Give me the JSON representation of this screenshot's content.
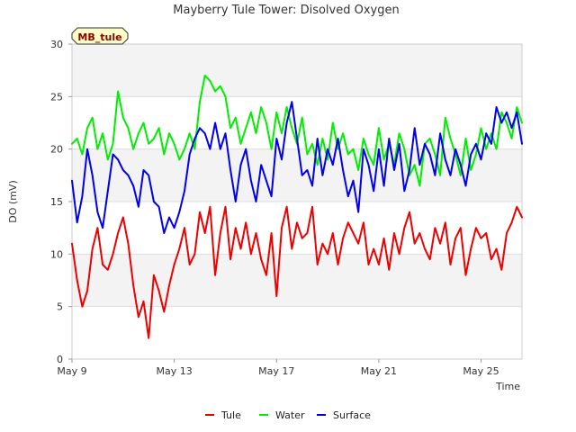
{
  "chart_data": {
    "type": "line",
    "title": "Mayberry Tule Tower: Disolved Oxygen",
    "xlabel": "Time",
    "ylabel": "DO (mV)",
    "site_badge": "MB_tule",
    "ylim": [
      0,
      30
    ],
    "xlim": [
      "May 9",
      "May 26.6"
    ],
    "x_ticks": [
      "May 9",
      "May 13",
      "May 17",
      "May 21",
      "May 25"
    ],
    "y_ticks": [
      0,
      5,
      10,
      15,
      20,
      25,
      30
    ],
    "grid": true,
    "legend": "bottom",
    "x_days": [
      9.0,
      9.2,
      9.4,
      9.6,
      9.8,
      10.0,
      10.2,
      10.4,
      10.6,
      10.8,
      11.0,
      11.2,
      11.4,
      11.6,
      11.8,
      12.0,
      12.2,
      12.4,
      12.6,
      12.8,
      13.0,
      13.2,
      13.4,
      13.6,
      13.8,
      14.0,
      14.2,
      14.4,
      14.6,
      14.8,
      15.0,
      15.2,
      15.4,
      15.6,
      15.8,
      16.0,
      16.2,
      16.4,
      16.6,
      16.8,
      17.0,
      17.2,
      17.4,
      17.6,
      17.8,
      18.0,
      18.2,
      18.4,
      18.6,
      18.8,
      19.0,
      19.2,
      19.4,
      19.6,
      19.8,
      20.0,
      20.2,
      20.4,
      20.6,
      20.8,
      21.0,
      21.2,
      21.4,
      21.6,
      21.8,
      22.0,
      22.2,
      22.4,
      22.6,
      22.8,
      23.0,
      23.2,
      23.4,
      23.6,
      23.8,
      24.0,
      24.2,
      24.4,
      24.6,
      24.8,
      25.0,
      25.2,
      25.4,
      25.6,
      25.8,
      26.0,
      26.2,
      26.4,
      26.6
    ],
    "series": [
      {
        "name": "Tule",
        "color": "#ee0000",
        "values": [
          11.0,
          7.5,
          5.0,
          6.5,
          10.5,
          12.5,
          9.0,
          8.5,
          10.0,
          12.0,
          13.5,
          11.0,
          7.0,
          4.0,
          5.5,
          2.0,
          8.0,
          6.5,
          4.5,
          7.0,
          9.0,
          10.5,
          12.5,
          9.0,
          10.0,
          14.0,
          12.0,
          14.5,
          8.0,
          12.0,
          14.5,
          9.5,
          12.5,
          10.5,
          13.0,
          10.0,
          12.0,
          9.5,
          8.0,
          12.0,
          6.0,
          12.5,
          14.5,
          10.5,
          13.0,
          11.5,
          12.0,
          14.5,
          9.0,
          11.0,
          10.0,
          12.0,
          9.0,
          11.5,
          13.0,
          12.0,
          11.0,
          13.0,
          9.0,
          10.5,
          9.0,
          11.5,
          8.5,
          12.0,
          10.0,
          12.5,
          14.0,
          11.0,
          12.0,
          10.5,
          9.5,
          12.5,
          11.0,
          13.0,
          9.0,
          11.5,
          12.5,
          8.0,
          10.5,
          12.5,
          11.5,
          12.0,
          9.5,
          10.5,
          8.5,
          12.0,
          13.0,
          14.5,
          13.5
        ]
      },
      {
        "name": "Water",
        "color": "#00ee00",
        "values": [
          20.5,
          21.0,
          19.5,
          22.0,
          23.0,
          20.0,
          21.5,
          19.0,
          20.5,
          25.5,
          23.0,
          22.0,
          20.0,
          21.5,
          22.5,
          20.5,
          21.0,
          22.0,
          19.5,
          21.5,
          20.5,
          19.0,
          20.0,
          21.5,
          20.0,
          24.5,
          27.0,
          26.5,
          25.5,
          26.0,
          25.0,
          22.0,
          23.0,
          20.5,
          22.0,
          23.5,
          21.5,
          24.0,
          22.5,
          20.0,
          23.5,
          21.5,
          24.0,
          22.0,
          20.5,
          23.0,
          19.5,
          20.5,
          18.5,
          21.0,
          19.0,
          22.5,
          20.0,
          21.5,
          19.5,
          20.0,
          18.0,
          21.0,
          19.5,
          18.5,
          22.0,
          19.0,
          20.5,
          18.5,
          21.5,
          20.0,
          17.5,
          18.5,
          16.5,
          20.5,
          21.0,
          19.5,
          17.5,
          23.0,
          21.0,
          19.5,
          17.5,
          21.0,
          18.0,
          19.5,
          22.0,
          20.0,
          21.5,
          20.0,
          23.5,
          22.5,
          21.0,
          24.0,
          22.5
        ]
      },
      {
        "name": "Surface",
        "color": "#0000ee",
        "values": [
          17.0,
          13.0,
          15.5,
          20.0,
          17.5,
          14.0,
          12.5,
          16.0,
          19.5,
          19.0,
          18.0,
          17.5,
          16.5,
          14.5,
          18.0,
          17.5,
          15.0,
          14.5,
          12.0,
          13.5,
          12.5,
          14.0,
          16.0,
          19.5,
          21.0,
          22.0,
          21.5,
          20.0,
          22.5,
          20.0,
          21.5,
          18.0,
          15.0,
          18.5,
          20.0,
          17.0,
          15.0,
          18.5,
          17.0,
          15.5,
          21.0,
          19.0,
          22.5,
          24.5,
          21.0,
          17.5,
          18.0,
          16.5,
          21.0,
          17.5,
          20.0,
          18.5,
          21.0,
          18.0,
          15.5,
          17.0,
          14.0,
          20.0,
          18.5,
          16.0,
          20.0,
          16.5,
          21.0,
          18.0,
          20.5,
          16.0,
          18.0,
          22.0,
          18.5,
          20.5,
          19.5,
          17.5,
          21.5,
          19.0,
          17.5,
          20.0,
          18.5,
          16.5,
          19.5,
          20.5,
          19.0,
          21.5,
          20.5,
          24.0,
          22.5,
          23.5,
          22.0,
          23.5,
          20.5
        ]
      }
    ]
  }
}
